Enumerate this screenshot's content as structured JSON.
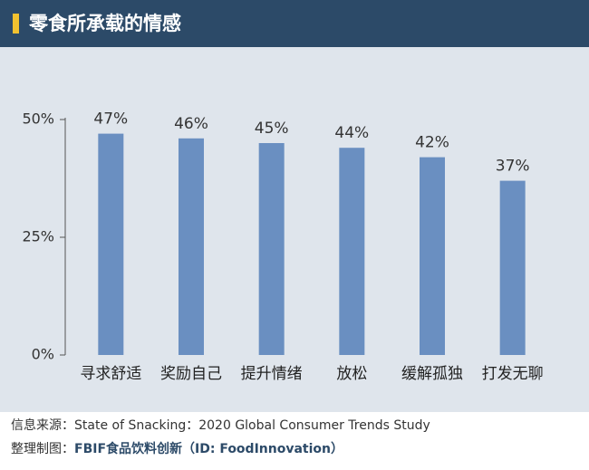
{
  "chart_data": {
    "type": "bar",
    "title": "零食所承载的情感",
    "categories": [
      "寻求舒适",
      "奖励自己",
      "提升情绪",
      "放松",
      "缓解孤独",
      "打发无聊"
    ],
    "values": [
      47,
      46,
      45,
      44,
      42,
      37
    ],
    "value_labels": [
      "47%",
      "46%",
      "45%",
      "44%",
      "42%",
      "37%"
    ],
    "color": "#6a8fc1",
    "ylim": [
      0,
      50
    ],
    "yticks": [
      {
        "value": 0,
        "label": "0%"
      },
      {
        "value": 25,
        "label": "25%"
      },
      {
        "value": 50,
        "label": "50%"
      }
    ],
    "grid": false
  },
  "footer": {
    "source_label": "信息来源：",
    "source": "State of Snacking：2020 Global Consumer Trends Study",
    "credit_label": "整理制图：",
    "credit_brand": "FBIF",
    "credit": "食品饮料创新（ID: FoodInnovation）"
  }
}
